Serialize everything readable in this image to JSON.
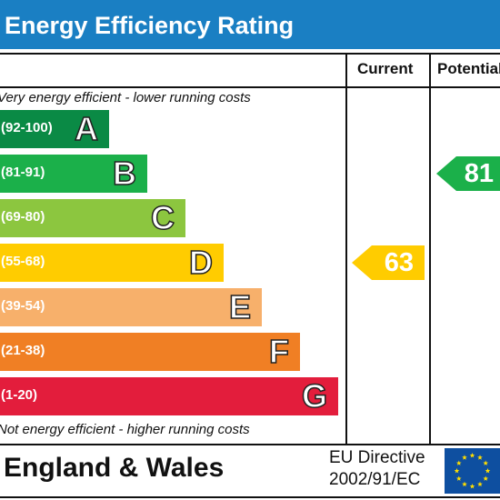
{
  "chart_data": {
    "type": "bar",
    "title": "Energy Efficiency Rating",
    "columns": [
      "Current",
      "Potential"
    ],
    "bands": [
      {
        "letter": "A",
        "range": "(92-100)",
        "color": "#0a8a45"
      },
      {
        "letter": "B",
        "range": "(81-91)",
        "color": "#1bb04a"
      },
      {
        "letter": "C",
        "range": "(69-80)",
        "color": "#8cc63f"
      },
      {
        "letter": "D",
        "range": "(55-68)",
        "color": "#ffcc00"
      },
      {
        "letter": "E",
        "range": "(39-54)",
        "color": "#f7b06b"
      },
      {
        "letter": "F",
        "range": "(21-38)",
        "color": "#f07f24"
      },
      {
        "letter": "G",
        "range": "(1-20)",
        "color": "#e31d3c"
      }
    ],
    "current": {
      "value": 63,
      "band": "D",
      "color": "#ffcc00"
    },
    "potential": {
      "value": 81,
      "band": "B",
      "color": "#1bb04a"
    },
    "top_note": "Very energy efficient - lower running costs",
    "bottom_note": "Not energy efficient - higher running costs"
  },
  "footer": {
    "country": "England & Wales",
    "directive_line1": "EU Directive",
    "directive_line2": "2002/91/EC"
  },
  "colors": {
    "title_bar": "#1a7fc3",
    "eu_flag_blue": "#0e4fa0",
    "eu_flag_stars": "#ffdd00"
  }
}
